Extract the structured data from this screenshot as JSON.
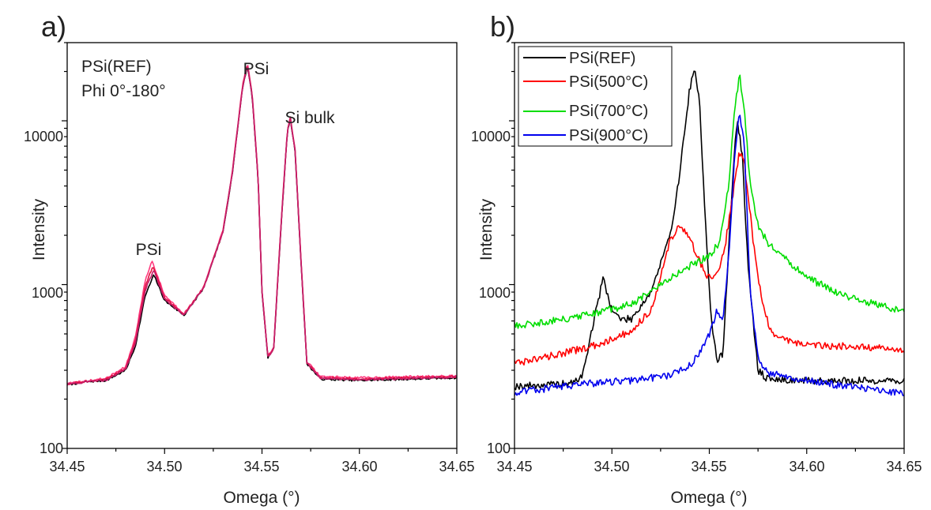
{
  "chart_data": [
    {
      "type": "line",
      "panel_label": "a)",
      "xlabel": "Omega (°)",
      "ylabel": "Intensity",
      "xlim": [
        34.45,
        34.65
      ],
      "ylim": [
        100,
        30000
      ],
      "yscale": "log",
      "xticks": [
        "34.45",
        "34.50",
        "34.55",
        "34.60",
        "34.65"
      ],
      "yticks": [
        "100",
        "1000",
        "10000"
      ],
      "grid": false,
      "legend": "none",
      "annotations": [
        {
          "text": "PSi(REF)",
          "x": 34.459,
          "y": 22000
        },
        {
          "text": "Phi 0°-180°",
          "x": 34.459,
          "y": 12900
        },
        {
          "text": "PSi",
          "x": 34.4925,
          "y": 1800
        },
        {
          "text": "PSi",
          "x": 34.5425,
          "y": 29000
        },
        {
          "text": "Si bulk",
          "x": 34.5655,
          "y": 13500
        }
      ],
      "series": [
        {
          "color": "#000000",
          "x": [
            34.45,
            34.46,
            34.47,
            34.48,
            34.485,
            34.49,
            34.4945,
            34.5,
            34.51,
            34.52,
            34.53,
            34.535,
            34.54,
            34.5425,
            34.545,
            34.548,
            34.55,
            34.553,
            34.556,
            34.56,
            34.563,
            34.5645,
            34.567,
            34.57,
            34.573,
            34.58,
            34.6,
            34.65
          ],
          "y": [
            245,
            255,
            260,
            300,
            420,
            850,
            1150,
            800,
            650,
            950,
            2100,
            5000,
            16000,
            21500,
            14000,
            4500,
            900,
            360,
            400,
            2500,
            8500,
            10300,
            6500,
            1400,
            330,
            265,
            260,
            270
          ]
        },
        {
          "color": "#ff3b7f",
          "x": [
            34.45,
            34.46,
            34.47,
            34.48,
            34.485,
            34.49,
            34.4935,
            34.5,
            34.51,
            34.52,
            34.53,
            34.535,
            34.54,
            34.5425,
            34.545,
            34.548,
            34.55,
            34.553,
            34.556,
            34.56,
            34.563,
            34.5645,
            34.567,
            34.57,
            34.573,
            34.58,
            34.6,
            34.65
          ],
          "y": [
            250,
            258,
            268,
            315,
            480,
            1050,
            1400,
            860,
            665,
            960,
            2150,
            5100,
            16500,
            22500,
            14500,
            4600,
            920,
            370,
            410,
            2600,
            8700,
            10600,
            6700,
            1450,
            340,
            275,
            270,
            278
          ]
        },
        {
          "color": "#e3103f",
          "x": [
            34.45,
            34.46,
            34.47,
            34.48,
            34.485,
            34.49,
            34.494,
            34.5,
            34.51,
            34.52,
            34.53,
            34.535,
            34.54,
            34.5425,
            34.545,
            34.548,
            34.55,
            34.553,
            34.556,
            34.56,
            34.563,
            34.5645,
            34.567,
            34.57,
            34.573,
            34.58,
            34.6,
            34.65
          ],
          "y": [
            248,
            256,
            264,
            308,
            455,
            970,
            1300,
            830,
            658,
            955,
            2120,
            5050,
            16200,
            22000,
            14200,
            4550,
            910,
            365,
            405,
            2550,
            8600,
            10450,
            6600,
            1420,
            335,
            270,
            266,
            274
          ]
        },
        {
          "color": "#c41e6a",
          "x": [
            34.45,
            34.46,
            34.47,
            34.48,
            34.485,
            34.49,
            34.4943,
            34.5,
            34.51,
            34.52,
            34.53,
            34.535,
            34.54,
            34.5425,
            34.545,
            34.548,
            34.55,
            34.553,
            34.556,
            34.56,
            34.563,
            34.5645,
            34.567,
            34.57,
            34.573,
            34.58,
            34.6,
            34.65
          ],
          "y": [
            246,
            255,
            262,
            304,
            440,
            920,
            1230,
            815,
            655,
            952,
            2110,
            5030,
            16100,
            21800,
            14100,
            4520,
            905,
            362,
            402,
            2520,
            8550,
            10380,
            6550,
            1410,
            332,
            268,
            263,
            272
          ]
        }
      ]
    },
    {
      "type": "line",
      "panel_label": "b)",
      "xlabel": "Omega (°)",
      "ylabel": "Intensity",
      "xlim": [
        34.45,
        34.65
      ],
      "ylim": [
        100,
        30000
      ],
      "yscale": "log",
      "xticks": [
        "34.45",
        "34.50",
        "34.55",
        "34.60",
        "34.65"
      ],
      "yticks": [
        "100",
        "1000",
        "10000"
      ],
      "grid": false,
      "legend": "top-left",
      "series": [
        {
          "name": "PSi(REF)",
          "color": "#000000",
          "x": [
            34.45,
            34.47,
            34.48,
            34.485,
            34.49,
            34.4955,
            34.5,
            34.505,
            34.51,
            34.52,
            34.53,
            34.535,
            34.54,
            34.5425,
            34.545,
            34.548,
            34.551,
            34.554,
            34.557,
            34.56,
            34.563,
            34.5645,
            34.567,
            34.57,
            34.575,
            34.58,
            34.6,
            34.65
          ],
          "y": [
            240,
            245,
            250,
            280,
            550,
            1100,
            700,
            610,
            620,
            900,
            2000,
            5000,
            16000,
            20000,
            13000,
            2500,
            600,
            340,
            380,
            1700,
            7000,
            10000,
            6000,
            1200,
            300,
            265,
            258,
            260
          ]
        },
        {
          "name": "PSi(500°C)",
          "color": "#ff0000",
          "x": [
            34.45,
            34.47,
            34.49,
            34.51,
            34.52,
            34.525,
            34.53,
            34.535,
            34.54,
            34.545,
            34.548,
            34.552,
            34.555,
            34.558,
            34.562,
            34.5655,
            34.568,
            34.571,
            34.574,
            34.578,
            34.582,
            34.59,
            34.6,
            34.62,
            34.65
          ],
          "y": [
            330,
            370,
            420,
            520,
            700,
            1100,
            1900,
            2300,
            1900,
            1400,
            1150,
            1100,
            1250,
            1700,
            3500,
            6500,
            5500,
            2700,
            1300,
            720,
            500,
            460,
            430,
            420,
            400
          ]
        },
        {
          "name": "PSi(700°C)",
          "color": "#00dd00",
          "x": [
            34.45,
            34.47,
            34.49,
            34.51,
            34.52,
            34.53,
            34.54,
            34.55,
            34.555,
            34.56,
            34.563,
            34.5655,
            34.568,
            34.571,
            34.575,
            34.58,
            34.59,
            34.6,
            34.62,
            34.65
          ],
          "y": [
            560,
            600,
            660,
            760,
            900,
            1100,
            1300,
            1500,
            1800,
            4000,
            12000,
            19000,
            12000,
            4000,
            2300,
            1800,
            1400,
            1100,
            850,
            680
          ]
        },
        {
          "name": "PSi(900°C)",
          "color": "#0000ee",
          "x": [
            34.45,
            34.47,
            34.49,
            34.51,
            34.53,
            34.54,
            34.545,
            34.55,
            34.554,
            34.557,
            34.56,
            34.563,
            34.5655,
            34.568,
            34.571,
            34.575,
            34.58,
            34.6,
            34.62,
            34.65
          ],
          "y": [
            220,
            235,
            250,
            260,
            280,
            320,
            380,
            500,
            700,
            600,
            1500,
            6000,
            11500,
            7000,
            900,
            350,
            290,
            260,
            240,
            215
          ]
        }
      ]
    }
  ]
}
